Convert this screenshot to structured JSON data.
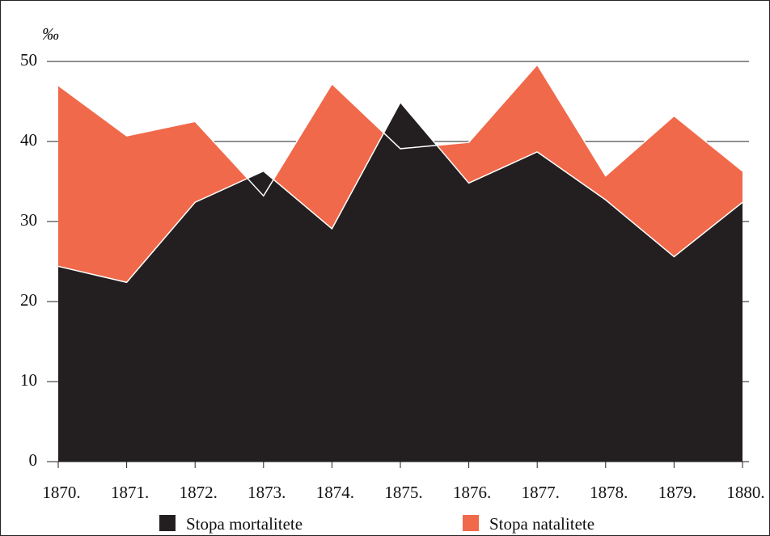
{
  "chart_data": {
    "type": "area",
    "y_label": "‰",
    "categories": [
      "1870.",
      "1871.",
      "1872.",
      "1873.",
      "1874.",
      "1875.",
      "1876.",
      "1877.",
      "1878.",
      "1879.",
      "1880."
    ],
    "series": [
      {
        "name": "Stopa natalitete",
        "color": "#f0694a",
        "values": [
          47.0,
          40.7,
          42.5,
          33.2,
          47.2,
          39.1,
          39.9,
          49.6,
          35.7,
          43.2,
          36.3
        ]
      },
      {
        "name": "Stopa mortalitete",
        "color": "#231f20",
        "values": [
          24.4,
          22.4,
          32.4,
          36.3,
          29.1,
          44.9,
          34.8,
          38.7,
          32.7,
          25.6,
          32.4
        ]
      }
    ],
    "ylim": [
      0,
      50
    ],
    "yticks": [
      0,
      10,
      20,
      30,
      40,
      50
    ],
    "grid": true
  }
}
